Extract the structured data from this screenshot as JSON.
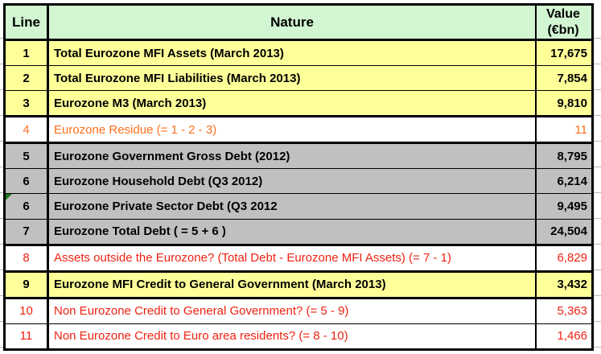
{
  "table": {
    "header": {
      "line": "Line",
      "nature": "Nature",
      "value_line1": "Value",
      "value_line2": "(€bn)"
    },
    "rows": [
      {
        "line": "1",
        "nature": "Total Eurozone MFI Assets (March 2013)",
        "value": "17,675",
        "variant": "yellow",
        "sep": "thin"
      },
      {
        "line": "2",
        "nature": "Total Eurozone MFI Liabilities  (March 2013)",
        "value": "7,854",
        "variant": "yellow",
        "sep": "thin"
      },
      {
        "line": "3",
        "nature": "Eurozone M3 (March 2013)",
        "value": "9,810",
        "variant": "yellow",
        "sep": "thick"
      },
      {
        "line": "4",
        "nature": "Eurozone Residue (= 1 - 2 - 3)",
        "value": "11",
        "variant": "white-orange",
        "sep": "thick"
      },
      {
        "line": "5",
        "nature": "Eurozone Government Gross Debt (2012)",
        "value": "8,795",
        "variant": "gray",
        "sep": "thin"
      },
      {
        "line": "6",
        "nature": "Eurozone Household Debt (Q3 2012)",
        "value": "6,214",
        "variant": "gray",
        "sep": "thin"
      },
      {
        "line": "6",
        "nature": "Eurozone Private Sector Debt (Q3 2012",
        "value": "9,495",
        "variant": "gray",
        "sep": "thin",
        "marker": true
      },
      {
        "line": "7",
        "nature": "Eurozone Total Debt ( = 5 + 6 )",
        "value": "24,504",
        "variant": "gray",
        "sep": "thick"
      },
      {
        "line": "8",
        "nature": "Assets outside the Eurozone? (Total Debt - Eurozone MFI Assets) (= 7 - 1)",
        "value": "6,829",
        "variant": "white-red",
        "sep": "thick"
      },
      {
        "line": "9",
        "nature": "Eurozone MFI Credit to General Government (March 2013)",
        "value": "3,432",
        "variant": "yellow",
        "sep": "thick"
      },
      {
        "line": "10",
        "nature": "Non Eurozone Credit to General Government? (= 5 - 9)",
        "value": "5,363",
        "variant": "white-red",
        "sep": "thin"
      },
      {
        "line": "11",
        "nature": "Non Eurozone Credit to Euro area residents? (= 8 - 10)",
        "value": "1,466",
        "variant": "white-red",
        "sep": "none"
      }
    ]
  },
  "icons": {
    "comment_marker": "green-corner-triangle"
  },
  "colors": {
    "header-bg": "#d2f5d2",
    "yellow": "#ffff99",
    "gray": "#c0c0c0",
    "white": "#ffffff",
    "orange-text": "#ff6f1f",
    "red-text": "#ee2211",
    "black-text": "#000000",
    "border": "#000000",
    "comment-marker": "#1e7a1e",
    "gridline": "#b9b9b9"
  }
}
